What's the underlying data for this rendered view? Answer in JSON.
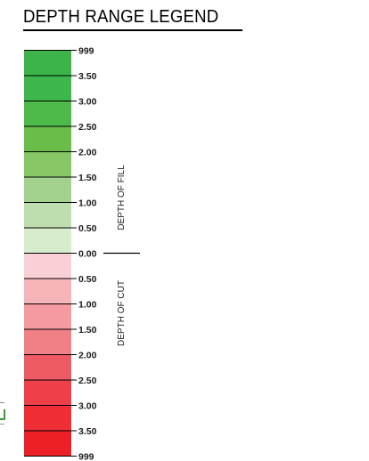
{
  "title": "DEPTH RANGE LEGEND",
  "legend": {
    "bands": [
      {
        "color": "#3cb449"
      },
      {
        "color": "#3db74b"
      },
      {
        "color": "#4cb948"
      },
      {
        "color": "#6bbd4a"
      },
      {
        "color": "#88c766"
      },
      {
        "color": "#a3d18e"
      },
      {
        "color": "#bfdeb0"
      },
      {
        "color": "#d6eccd"
      },
      {
        "color": "#f9d0d5"
      },
      {
        "color": "#f6b3b8"
      },
      {
        "color": "#f49aa0"
      },
      {
        "color": "#f07f86"
      },
      {
        "color": "#ee5a63"
      },
      {
        "color": "#ef3f48"
      },
      {
        "color": "#ee2d35"
      },
      {
        "color": "#ed2027"
      }
    ],
    "tick_labels": [
      "999",
      "3.50",
      "3.00",
      "2.50",
      "2.00",
      "1.50",
      "1.00",
      "0.50",
      "0.00",
      "0.50",
      "1.00",
      "1.50",
      "2.00",
      "2.50",
      "3.00",
      "3.50",
      "999"
    ],
    "fill_label": "DEPTH OF FILL",
    "cut_label": "DEPTH OF CUT"
  }
}
